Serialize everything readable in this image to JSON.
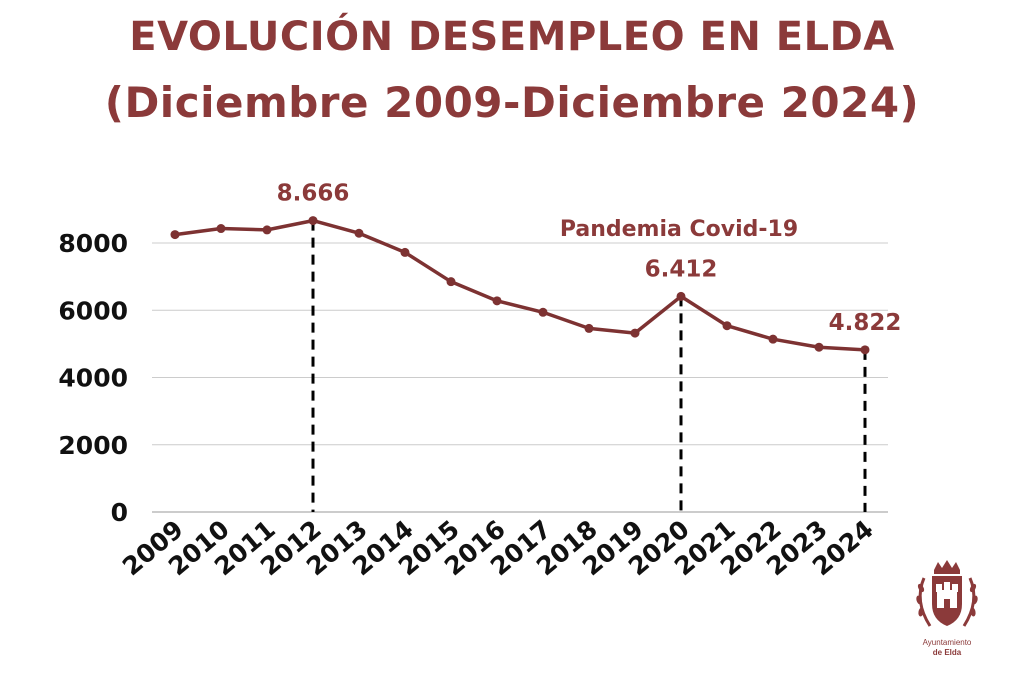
{
  "title_line1": "EVOLUCIÓN DESEMPLEO EN ELDA",
  "title_line2": "(Diciembre 2009-Diciembre 2024)",
  "colors": {
    "accent": "#8b3a3a",
    "line": "#7d3232",
    "grid": "#cccccc",
    "axis_text": "#111111"
  },
  "logo": {
    "line1": "Ayuntamiento",
    "line2": "de Elda"
  },
  "chart_data": {
    "type": "line",
    "title": "EVOLUCIÓN DESEMPLEO EN ELDA (Diciembre 2009-Diciembre 2024)",
    "xlabel": "",
    "ylabel": "",
    "ylim": [
      0,
      8000
    ],
    "yticks": [
      0,
      2000,
      4000,
      6000,
      8000
    ],
    "grid": true,
    "categories": [
      "2009",
      "2010",
      "2011",
      "2012",
      "2013",
      "2014",
      "2015",
      "2016",
      "2017",
      "2018",
      "2019",
      "2020",
      "2021",
      "2022",
      "2023",
      "2024"
    ],
    "series": [
      {
        "values": [
          8250,
          8430,
          8390,
          8666,
          8290,
          7720,
          6850,
          6280,
          5940,
          5460,
          5320,
          6412,
          5540,
          5140,
          4900,
          4822
        ]
      }
    ],
    "highlights": [
      {
        "category": "2012",
        "label": "8.666"
      },
      {
        "category": "2020",
        "label": "6.412"
      },
      {
        "category": "2024",
        "label": "4.822"
      }
    ],
    "annotations": [
      {
        "text": "Pandemia Covid-19",
        "category": "2020"
      }
    ]
  }
}
